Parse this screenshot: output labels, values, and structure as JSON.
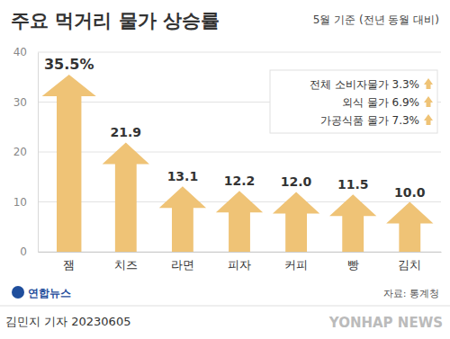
{
  "chart_data": {
    "type": "bar",
    "title": "주요 먹거리 물가 상승률",
    "subtitle": "5월 기준 (전년 동월 대비)",
    "categories": [
      "잼",
      "치즈",
      "라면",
      "피자",
      "커피",
      "빵",
      "김치"
    ],
    "values": [
      35.5,
      21.9,
      13.1,
      12.2,
      12.0,
      11.5,
      10.0
    ],
    "value_labels": [
      "35.5%",
      "21.9",
      "13.1",
      "12.2",
      "12.0",
      "11.5",
      "10.0"
    ],
    "color": "#efc376",
    "ylim": [
      0,
      40
    ],
    "yticks": [
      0,
      10,
      20,
      30,
      40
    ],
    "grid": true,
    "data_labels": true,
    "annotations": [
      "전체 소비자물가 3.3%",
      "외식 물가 6.9%",
      "가공식품 물가 7.3%"
    ],
    "source": "자료: 통계청",
    "credit": "연합뉴스",
    "byline": "김민지 기자 20230605",
    "watermark": "YONHAP NEWS"
  }
}
